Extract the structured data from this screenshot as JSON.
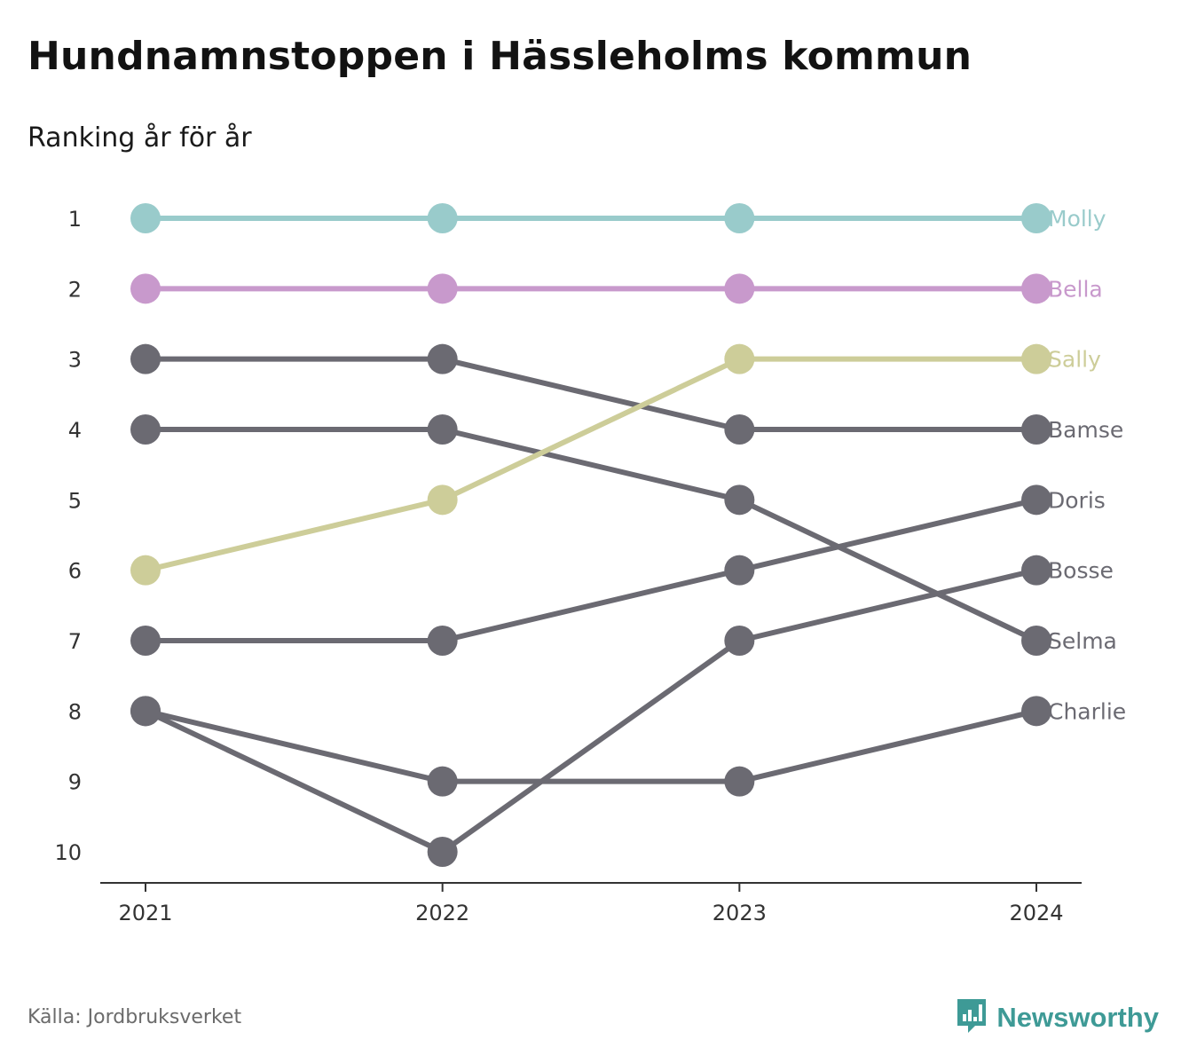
{
  "title": "Hundnamnstoppen i Hässleholms kommun",
  "subtitle": "Ranking år för år",
  "source": "Källa: Jordbruksverket",
  "brand": "Newsworthy",
  "brand_icon": "newsworthy-logo-icon",
  "colors": {
    "molly": "#99cbcb",
    "bella": "#c899cc",
    "sally": "#cdcd99",
    "other": "#6b6a72",
    "axis": "#333333",
    "brand": "#3e9a96"
  },
  "chart_data": {
    "type": "line",
    "title": "Hundnamnstoppen i Hässleholms kommun",
    "subtitle": "Ranking år för år",
    "x": [
      "2021",
      "2022",
      "2023",
      "2024"
    ],
    "y_ticks": [
      "1",
      "2",
      "3",
      "4",
      "5",
      "6",
      "7",
      "8",
      "9",
      "10"
    ],
    "ylim": [
      1,
      10
    ],
    "y_inverted": true,
    "grid": false,
    "legend": "direct labels at right end of lines",
    "series": [
      {
        "name": "Molly",
        "values": [
          1,
          1,
          1,
          1
        ],
        "color": "#99cbcb"
      },
      {
        "name": "Bella",
        "values": [
          2,
          2,
          2,
          2
        ],
        "color": "#c899cc"
      },
      {
        "name": "Sally",
        "values": [
          6,
          5,
          3,
          3
        ],
        "color": "#cdcd99"
      },
      {
        "name": "Bamse",
        "values": [
          3,
          3,
          4,
          4
        ],
        "color": "#6b6a72"
      },
      {
        "name": "Doris",
        "values": [
          7,
          7,
          6,
          5
        ],
        "color": "#6b6a72"
      },
      {
        "name": "Bosse",
        "values": [
          8,
          10,
          7,
          6
        ],
        "color": "#6b6a72"
      },
      {
        "name": "Selma",
        "values": [
          4,
          4,
          5,
          7
        ],
        "color": "#6b6a72"
      },
      {
        "name": "Charlie",
        "values": [
          8,
          9,
          9,
          8
        ],
        "color": "#6b6a72"
      }
    ]
  }
}
